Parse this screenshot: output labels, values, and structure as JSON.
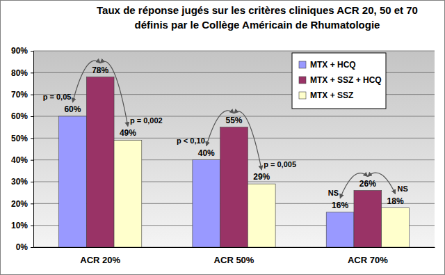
{
  "chart_data": {
    "type": "bar",
    "title": [
      "Taux de réponse jugés sur les critères cliniques ACR 20, 50 et 70",
      "définis par le Collège Américain de Rhumatologie"
    ],
    "categories": [
      "ACR 20%",
      "ACR 50%",
      "ACR 70%"
    ],
    "series": [
      {
        "name": "MTX + HCQ",
        "color": "#9999ff",
        "values": [
          60,
          40,
          16
        ],
        "value_labels": [
          "60%",
          "40%",
          "16%"
        ]
      },
      {
        "name": "MTX + SSZ + HCQ",
        "color": "#993366",
        "values": [
          78,
          55,
          26
        ],
        "value_labels": [
          "78%",
          "55%",
          "26%"
        ]
      },
      {
        "name": "MTX + SSZ",
        "color": "#ffffcc",
        "values": [
          49,
          29,
          18
        ],
        "value_labels": [
          "49%",
          "29%",
          "18%"
        ]
      }
    ],
    "ylim": [
      0,
      90
    ],
    "yticks": [
      {
        "value": 0,
        "label": "0%"
      },
      {
        "value": 10,
        "label": "10%"
      },
      {
        "value": 20,
        "label": "20%"
      },
      {
        "value": 30,
        "label": "30%"
      },
      {
        "value": 40,
        "label": "40%"
      },
      {
        "value": 50,
        "label": "50%"
      },
      {
        "value": 60,
        "label": "60%"
      },
      {
        "value": 70,
        "label": "70%"
      },
      {
        "value": 80,
        "label": "80%"
      },
      {
        "value": 90,
        "label": "90%"
      }
    ],
    "grid": true,
    "legend": "top-right",
    "data_labels": true,
    "annotations": [
      {
        "text": "p = 0,05",
        "category": "ACR 20%",
        "between": [
          "MTX + HCQ",
          "MTX + SSZ + HCQ"
        ]
      },
      {
        "text": "p = 0,002",
        "category": "ACR 20%",
        "between": [
          "MTX + SSZ + HCQ",
          "MTX + SSZ"
        ]
      },
      {
        "text": "p < 0,10",
        "category": "ACR 50%",
        "between": [
          "MTX + HCQ",
          "MTX + SSZ + HCQ"
        ]
      },
      {
        "text": "p = 0,005",
        "category": "ACR 50%",
        "between": [
          "MTX + SSZ + HCQ",
          "MTX + SSZ"
        ]
      },
      {
        "text": "NS",
        "category": "ACR 70%",
        "between": [
          "MTX + HCQ",
          "MTX + SSZ + HCQ"
        ]
      },
      {
        "text": "NS",
        "category": "ACR 70%",
        "between": [
          "MTX + SSZ + HCQ",
          "MTX + SSZ"
        ]
      }
    ]
  }
}
